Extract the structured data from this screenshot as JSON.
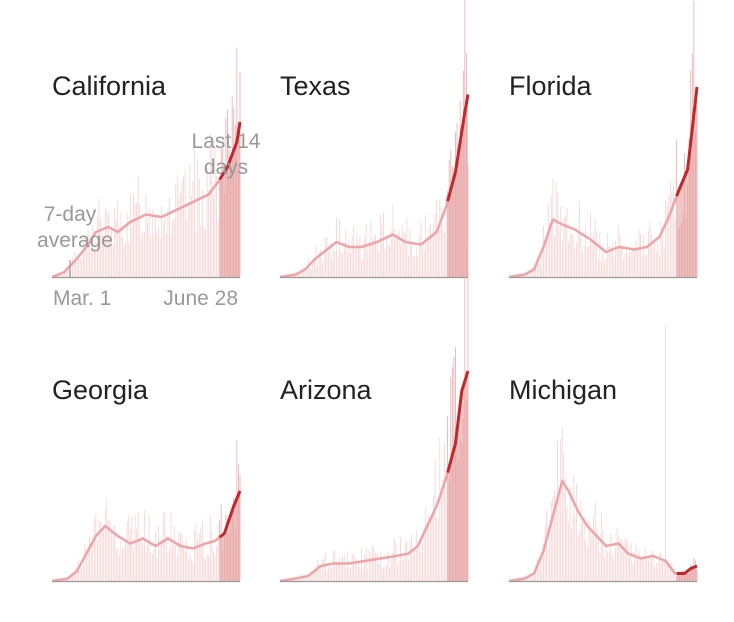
{
  "colors": {
    "bar": "#f6cfcf",
    "avg_line": "#f0a3a6",
    "highlight_band": "#e8a6a6",
    "highlight_line": "#c0282b",
    "axis": "#999999",
    "title": "#222222",
    "annotation": "#999999"
  },
  "annotations": {
    "avg_label_line1": "7-day",
    "avg_label_line2": "average",
    "last14_line1": "Last 14",
    "last14_line2": "days",
    "start_date": "Mar. 1",
    "end_date": "June 28"
  },
  "chart_data": [
    {
      "type": "bar",
      "state": "California",
      "x_start": "Mar. 1",
      "x_end": "June 28",
      "highlight_days": 14,
      "grid": false,
      "ylim": [
        0,
        100
      ],
      "avg_control_points": [
        [
          0,
          0
        ],
        [
          8,
          2
        ],
        [
          14,
          6
        ],
        [
          22,
          12
        ],
        [
          28,
          18
        ],
        [
          36,
          20
        ],
        [
          42,
          18
        ],
        [
          50,
          22
        ],
        [
          60,
          25
        ],
        [
          70,
          24
        ],
        [
          80,
          27
        ],
        [
          90,
          30
        ],
        [
          100,
          33
        ],
        [
          106,
          38
        ],
        [
          112,
          44
        ],
        [
          118,
          54
        ],
        [
          120,
          62
        ]
      ]
    },
    {
      "type": "bar",
      "state": "Texas",
      "x_start": "Mar. 1",
      "x_end": "June 28",
      "highlight_days": 14,
      "grid": false,
      "ylim": [
        0,
        100
      ],
      "avg_control_points": [
        [
          0,
          0
        ],
        [
          10,
          1
        ],
        [
          16,
          3
        ],
        [
          22,
          7
        ],
        [
          30,
          11
        ],
        [
          36,
          14
        ],
        [
          44,
          12
        ],
        [
          52,
          12
        ],
        [
          62,
          14
        ],
        [
          72,
          17
        ],
        [
          80,
          14
        ],
        [
          90,
          13
        ],
        [
          100,
          18
        ],
        [
          106,
          28
        ],
        [
          112,
          42
        ],
        [
          118,
          66
        ],
        [
          120,
          73
        ]
      ]
    },
    {
      "type": "bar",
      "state": "Florida",
      "x_start": "Mar. 1",
      "x_end": "June 28",
      "highlight_days": 14,
      "grid": false,
      "ylim": [
        0,
        100
      ],
      "avg_control_points": [
        [
          0,
          0
        ],
        [
          10,
          1
        ],
        [
          16,
          3
        ],
        [
          22,
          12
        ],
        [
          28,
          23
        ],
        [
          34,
          21
        ],
        [
          42,
          19
        ],
        [
          52,
          15
        ],
        [
          62,
          10
        ],
        [
          70,
          12
        ],
        [
          80,
          11
        ],
        [
          88,
          12
        ],
        [
          96,
          16
        ],
        [
          102,
          24
        ],
        [
          108,
          34
        ],
        [
          114,
          43
        ],
        [
          118,
          65
        ],
        [
          120,
          76
        ]
      ]
    },
    {
      "type": "bar",
      "state": "Georgia",
      "x_start": "Mar. 1",
      "x_end": "June 28",
      "highlight_days": 14,
      "grid": false,
      "ylim": [
        0,
        100
      ],
      "avg_control_points": [
        [
          0,
          0
        ],
        [
          10,
          1
        ],
        [
          16,
          4
        ],
        [
          22,
          11
        ],
        [
          28,
          18
        ],
        [
          34,
          22
        ],
        [
          42,
          18
        ],
        [
          50,
          15
        ],
        [
          58,
          17
        ],
        [
          66,
          14
        ],
        [
          74,
          17
        ],
        [
          82,
          14
        ],
        [
          90,
          13
        ],
        [
          98,
          15
        ],
        [
          104,
          16
        ],
        [
          110,
          19
        ],
        [
          116,
          30
        ],
        [
          120,
          36
        ]
      ]
    },
    {
      "type": "bar",
      "state": "Arizona",
      "x_start": "Mar. 1",
      "x_end": "June 28",
      "highlight_days": 14,
      "grid": false,
      "ylim": [
        0,
        100
      ],
      "avg_control_points": [
        [
          0,
          0
        ],
        [
          10,
          1
        ],
        [
          18,
          2
        ],
        [
          26,
          6
        ],
        [
          34,
          7
        ],
        [
          44,
          7
        ],
        [
          54,
          8
        ],
        [
          64,
          9
        ],
        [
          74,
          10
        ],
        [
          82,
          11
        ],
        [
          88,
          14
        ],
        [
          94,
          22
        ],
        [
          100,
          30
        ],
        [
          106,
          41
        ],
        [
          112,
          55
        ],
        [
          116,
          76
        ],
        [
          120,
          84
        ]
      ]
    },
    {
      "type": "bar",
      "state": "Michigan",
      "x_start": "Mar. 1",
      "x_end": "June 28",
      "highlight_days": 14,
      "grid": false,
      "ylim": [
        0,
        100
      ],
      "avg_control_points": [
        [
          0,
          0
        ],
        [
          10,
          1
        ],
        [
          16,
          3
        ],
        [
          22,
          12
        ],
        [
          28,
          26
        ],
        [
          34,
          40
        ],
        [
          38,
          36
        ],
        [
          44,
          28
        ],
        [
          50,
          22
        ],
        [
          56,
          18
        ],
        [
          62,
          14
        ],
        [
          70,
          15
        ],
        [
          76,
          11
        ],
        [
          84,
          9
        ],
        [
          92,
          10
        ],
        [
          100,
          8
        ],
        [
          106,
          3
        ],
        [
          112,
          3
        ],
        [
          116,
          5
        ],
        [
          120,
          6
        ]
      ]
    }
  ]
}
